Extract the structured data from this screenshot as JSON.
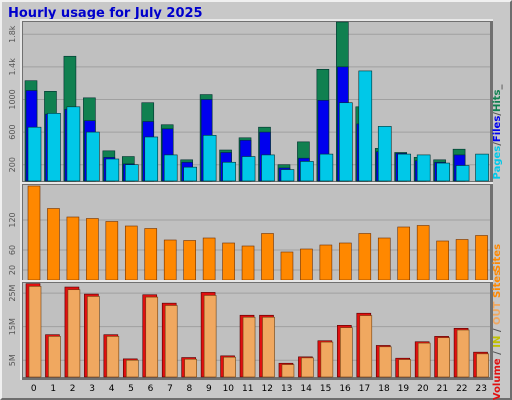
{
  "title": "Hourly usage for July 2025",
  "colors": {
    "background": "#c8c8c8",
    "panel": "#c0c0c0",
    "grid": "#a0a0a0",
    "title": "#0000cc",
    "pages": "#00c8e8",
    "files": "#0000ee",
    "hits": "#108050",
    "sites": "#ff8800",
    "volume": "#e01010",
    "volume_in": "#f0a860",
    "volume_out": "#c0c000"
  },
  "chart_data": [
    {
      "type": "bar",
      "panel": "requests",
      "categories": [
        "0",
        "1",
        "2",
        "3",
        "4",
        "5",
        "6",
        "7",
        "8",
        "9",
        "10",
        "11",
        "12",
        "13",
        "14",
        "15",
        "16",
        "17",
        "18",
        "19",
        "20",
        "21",
        "22",
        "23"
      ],
      "y_ticks": [
        "200",
        "600",
        "1000",
        "1.4k",
        "1.8k"
      ],
      "ylim": [
        0,
        1950
      ],
      "series_label_parts": [
        "Pages",
        "/",
        "Files",
        "/",
        "Hits",
        "_"
      ],
      "series": [
        {
          "name": "Hits",
          "values": [
            1230,
            1100,
            1530,
            1020,
            370,
            300,
            960,
            690,
            260,
            1060,
            380,
            530,
            660,
            200,
            480,
            1370,
            1950,
            910,
            400,
            350,
            290,
            260,
            390,
            0
          ]
        },
        {
          "name": "Files",
          "values": [
            1110,
            820,
            880,
            740,
            290,
            210,
            730,
            640,
            230,
            1000,
            350,
            500,
            600,
            160,
            280,
            990,
            1400,
            700,
            360,
            340,
            250,
            230,
            320,
            0
          ]
        },
        {
          "name": "Pages",
          "values": [
            660,
            830,
            910,
            600,
            270,
            200,
            540,
            320,
            170,
            560,
            230,
            300,
            320,
            140,
            240,
            330,
            960,
            1350,
            670,
            330,
            320,
            220,
            190,
            330
          ]
        }
      ]
    },
    {
      "type": "bar",
      "panel": "sites",
      "categories": [
        "0",
        "1",
        "2",
        "3",
        "4",
        "5",
        "6",
        "7",
        "8",
        "9",
        "10",
        "11",
        "12",
        "13",
        "14",
        "15",
        "16",
        "17",
        "18",
        "19",
        "20",
        "21",
        "22",
        "23"
      ],
      "y_ticks": [
        "20",
        "60",
        "120"
      ],
      "ylim": [
        0,
        190
      ],
      "series_label": "Sites",
      "series": [
        {
          "name": "Sites",
          "values": [
            188,
            143,
            126,
            123,
            117,
            108,
            103,
            80,
            79,
            84,
            74,
            68,
            93,
            56,
            62,
            70,
            74,
            93,
            84,
            106,
            109,
            78,
            81,
            89
          ]
        }
      ]
    },
    {
      "type": "bar",
      "panel": "volume",
      "categories": [
        "0",
        "1",
        "2",
        "3",
        "4",
        "5",
        "6",
        "7",
        "8",
        "9",
        "10",
        "11",
        "12",
        "13",
        "14",
        "15",
        "16",
        "17",
        "18",
        "19",
        "20",
        "21",
        "22",
        "23"
      ],
      "y_ticks": [
        "5M",
        "15M",
        "25M"
      ],
      "ylim": [
        0,
        28
      ],
      "series_label_parts": [
        "Volume",
        " / ",
        "IN",
        " / ",
        "OUT",
        " ",
        "Sites"
      ],
      "series": [
        {
          "name": "Volume",
          "values": [
            27.8,
            12.6,
            26.8,
            24.7,
            12.6,
            5.4,
            24.5,
            22.0,
            5.8,
            25.2,
            6.3,
            18.4,
            18.4,
            4.1,
            6.0,
            10.8,
            15.4,
            19.0,
            9.4,
            5.6,
            10.5,
            12.1,
            14.5,
            7.4
          ]
        },
        {
          "name": "IN",
          "values": [
            27.0,
            12.1,
            26.0,
            24.0,
            12.1,
            5.0,
            23.8,
            21.3,
            5.3,
            24.3,
            5.9,
            17.8,
            17.8,
            3.7,
            5.7,
            10.4,
            14.7,
            18.3,
            9.0,
            5.2,
            10.1,
            11.7,
            14.0,
            6.9
          ]
        }
      ]
    }
  ]
}
